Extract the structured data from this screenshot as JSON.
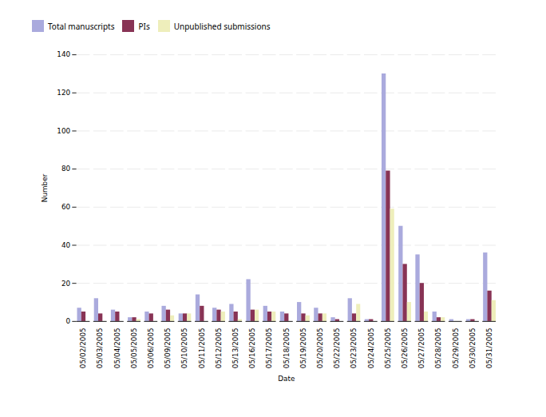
{
  "chart_data": {
    "type": "bar",
    "categories": [
      "05/02/2005",
      "05/03/2005",
      "05/04/2005",
      "05/05/2005",
      "05/06/2005",
      "05/09/2005",
      "05/10/2005",
      "05/11/2005",
      "05/12/2005",
      "05/13/2005",
      "05/16/2005",
      "05/17/2005",
      "05/18/2005",
      "05/19/2005",
      "05/20/2005",
      "05/22/2005",
      "05/23/2005",
      "05/24/2005",
      "05/25/2005",
      "05/26/2005",
      "05/27/2005",
      "05/28/2005",
      "05/29/2005",
      "05/30/2005",
      "05/31/2005"
    ],
    "series": [
      {
        "name": "Total manuscripts",
        "color": "#aaaadd",
        "values": [
          7,
          12,
          6,
          2,
          5,
          8,
          4,
          14,
          7,
          9,
          22,
          8,
          5,
          10,
          7,
          2,
          12,
          1,
          130,
          50,
          35,
          5,
          1,
          1,
          36
        ]
      },
      {
        "name": "PIs",
        "color": "#883355",
        "values": [
          5,
          4,
          5,
          2,
          4,
          6,
          4,
          8,
          6,
          5,
          6,
          5,
          4,
          4,
          4,
          1,
          4,
          1,
          79,
          30,
          20,
          2,
          0,
          1,
          16
        ]
      },
      {
        "name": "Unpublished submissions",
        "color": "#eeeebb",
        "values": [
          0,
          0,
          0,
          1,
          0,
          3,
          4,
          0,
          5,
          1,
          6,
          5,
          0,
          3,
          4,
          0,
          9,
          0,
          59,
          10,
          5,
          2,
          0,
          0,
          11
        ]
      }
    ],
    "xlabel": "Date",
    "ylabel": "Number",
    "ylim": [
      0,
      140
    ],
    "yticks": [
      0,
      20,
      40,
      60,
      80,
      100,
      120,
      140
    ],
    "grid": true,
    "legend": "top"
  }
}
